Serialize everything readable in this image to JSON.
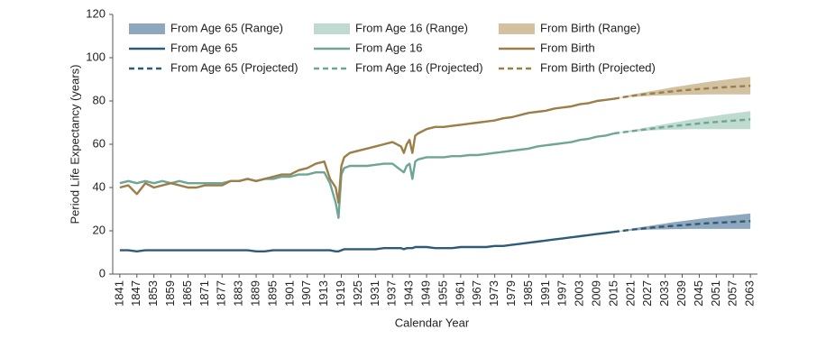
{
  "chart_data": {
    "type": "line",
    "x_label": "Calendar Year",
    "y_label": "Period Life Expectancy (years)",
    "x": [
      1841,
      1844,
      1847,
      1850,
      1853,
      1856,
      1859,
      1862,
      1865,
      1868,
      1871,
      1874,
      1877,
      1880,
      1883,
      1886,
      1889,
      1892,
      1895,
      1898,
      1901,
      1904,
      1907,
      1910,
      1913,
      1915,
      1917,
      1918,
      1919,
      1920,
      1922,
      1925,
      1928,
      1931,
      1934,
      1937,
      1940,
      1941,
      1942,
      1943,
      1944,
      1945,
      1946,
      1949,
      1952,
      1955,
      1958,
      1961,
      1964,
      1967,
      1970,
      1973,
      1976,
      1979,
      1982,
      1985,
      1988,
      1991,
      1994,
      1997,
      2000,
      2003,
      2006,
      2009,
      2012,
      2015
    ],
    "xlim": [
      1838.5,
      2065.5
    ],
    "ylim": [
      0,
      120
    ],
    "xticks": [
      1841,
      1847,
      1853,
      1859,
      1865,
      1871,
      1877,
      1883,
      1889,
      1895,
      1901,
      1907,
      1913,
      1919,
      1925,
      1931,
      1937,
      1943,
      1949,
      1955,
      1961,
      1967,
      1973,
      1979,
      1985,
      1991,
      1997,
      2003,
      2009,
      2015,
      2021,
      2027,
      2033,
      2039,
      2045,
      2051,
      2057,
      2063
    ],
    "yticks": [
      0,
      20,
      40,
      60,
      80,
      100,
      120
    ],
    "grid": false,
    "legend_position": "upper-left",
    "series": [
      {
        "name": "From Age 65 (Range)",
        "style": "range",
        "color": "#8fa7bc",
        "x": [
          2015,
          2018,
          2021,
          2024,
          2027,
          2030,
          2033,
          2036,
          2039,
          2042,
          2045,
          2048,
          2051,
          2054,
          2057,
          2060,
          2063
        ],
        "low": [
          19.5,
          19.8,
          20.1,
          20.3,
          20.5,
          20.6,
          20.7,
          20.8,
          20.8,
          20.9,
          20.9,
          20.9,
          20.9,
          20.9,
          20.9,
          20.9,
          20.9
        ],
        "high": [
          19.5,
          20.2,
          20.9,
          21.6,
          22.2,
          22.8,
          23.4,
          24,
          24.5,
          25,
          25.5,
          26,
          26.4,
          26.8,
          27.2,
          27.6,
          28
        ]
      },
      {
        "name": "From Age 16 (Range)",
        "style": "range",
        "color": "#bfdacf",
        "x": [
          2015,
          2018,
          2021,
          2024,
          2027,
          2030,
          2033,
          2036,
          2039,
          2042,
          2045,
          2048,
          2051,
          2054,
          2057,
          2060,
          2063
        ],
        "low": [
          65,
          65.3,
          65.7,
          66,
          66.3,
          66.5,
          66.7,
          66.8,
          66.9,
          67,
          67,
          67,
          67,
          67,
          67,
          67,
          67
        ],
        "high": [
          65,
          65.8,
          66.5,
          67.2,
          67.9,
          68.6,
          69.3,
          70,
          70.7,
          71.4,
          72,
          72.6,
          73.2,
          73.8,
          74.3,
          74.8,
          75.3
        ]
      },
      {
        "name": "From Birth (Range)",
        "style": "range",
        "color": "#d2c2a2",
        "x": [
          2015,
          2018,
          2021,
          2024,
          2027,
          2030,
          2033,
          2036,
          2039,
          2042,
          2045,
          2048,
          2051,
          2054,
          2057,
          2060,
          2063
        ],
        "low": [
          81,
          81.5,
          81.9,
          82.1,
          82.3,
          82.5,
          82.6,
          82.7,
          82.8,
          82.9,
          82.9,
          83,
          83,
          83,
          83,
          83,
          83
        ],
        "high": [
          81,
          82,
          82.9,
          83.6,
          84.3,
          85,
          85.7,
          86.4,
          87,
          87.6,
          88.2,
          88.8,
          89.3,
          89.8,
          90.3,
          90.8,
          91.2
        ]
      },
      {
        "name": "From Age 65",
        "style": "solid",
        "color": "#2f5b79",
        "values": [
          11,
          11,
          10.5,
          11,
          11,
          11,
          11,
          11,
          11,
          11,
          11,
          11,
          11,
          11,
          11,
          11,
          10.5,
          10.5,
          11,
          11,
          11,
          11,
          11,
          11,
          11,
          11,
          10.5,
          10.5,
          11,
          11.5,
          11.5,
          11.5,
          11.5,
          11.5,
          12,
          12,
          12,
          11.5,
          12,
          12,
          12,
          12.5,
          12.5,
          12.5,
          12,
          12,
          12,
          12.5,
          12.5,
          12.5,
          12.5,
          13,
          13,
          13.5,
          14,
          14.5,
          15,
          15.5,
          16,
          16.5,
          17,
          17.5,
          18,
          18.5,
          19,
          19.5
        ]
      },
      {
        "name": "From Age 16",
        "style": "solid",
        "color": "#6ea596",
        "values": [
          42,
          43,
          42,
          43,
          42,
          43,
          42,
          43,
          42,
          42,
          42,
          42,
          42,
          43,
          43,
          44,
          43,
          44,
          44,
          45,
          45,
          46,
          46,
          47,
          47,
          42,
          33,
          26,
          46,
          49,
          50,
          50,
          50,
          50.5,
          51,
          51,
          48,
          47,
          50,
          51,
          44,
          52,
          53,
          54,
          54,
          54,
          54.5,
          54.5,
          55,
          55,
          55.5,
          56,
          56.5,
          57,
          57.5,
          58,
          59,
          59.5,
          60,
          60.5,
          61,
          62,
          62.5,
          63.5,
          64,
          65
        ]
      },
      {
        "name": "From Birth",
        "style": "solid",
        "color": "#9b7e48",
        "values": [
          40,
          41,
          37,
          42,
          40,
          41,
          42,
          41,
          40,
          40,
          41,
          41,
          41,
          43,
          43,
          44,
          43,
          44,
          45,
          46,
          46,
          48,
          49,
          51,
          52,
          44,
          40,
          33,
          50,
          54,
          56,
          57,
          58,
          59,
          60,
          61,
          59,
          56,
          60,
          62,
          56,
          64,
          65,
          67,
          68,
          68,
          68.5,
          69,
          69.5,
          70,
          70.5,
          71,
          72,
          72.5,
          73.5,
          74.5,
          75,
          75.5,
          76.5,
          77,
          77.5,
          78.5,
          79,
          80,
          80.5,
          81
        ]
      },
      {
        "name": "From Age 65 (Projected)",
        "style": "dashed",
        "color": "#2f5b79",
        "x": [
          2015,
          2018,
          2021,
          2024,
          2027,
          2030,
          2033,
          2036,
          2039,
          2042,
          2045,
          2048,
          2051,
          2054,
          2057,
          2060,
          2063
        ],
        "values": [
          19.5,
          20,
          20.5,
          20.9,
          21.3,
          21.7,
          22,
          22.3,
          22.6,
          22.9,
          23.2,
          23.5,
          23.7,
          23.9,
          24.1,
          24.3,
          24.5
        ]
      },
      {
        "name": "From Age 16 (Projected)",
        "style": "dashed",
        "color": "#6ea596",
        "x": [
          2015,
          2018,
          2021,
          2024,
          2027,
          2030,
          2033,
          2036,
          2039,
          2042,
          2045,
          2048,
          2051,
          2054,
          2057,
          2060,
          2063
        ],
        "values": [
          65,
          65.5,
          66,
          66.5,
          67,
          67.5,
          68,
          68.4,
          68.8,
          69.2,
          69.6,
          70,
          70.3,
          70.6,
          70.9,
          71.2,
          71.5
        ]
      },
      {
        "name": "From Birth (Projected)",
        "style": "dashed",
        "color": "#9b7e48",
        "x": [
          2015,
          2018,
          2021,
          2024,
          2027,
          2030,
          2033,
          2036,
          2039,
          2042,
          2045,
          2048,
          2051,
          2054,
          2057,
          2060,
          2063
        ],
        "values": [
          81,
          81.7,
          82.3,
          82.8,
          83.3,
          83.7,
          84.1,
          84.5,
          84.9,
          85.2,
          85.5,
          85.8,
          86.1,
          86.4,
          86.6,
          86.8,
          87
        ]
      }
    ]
  }
}
